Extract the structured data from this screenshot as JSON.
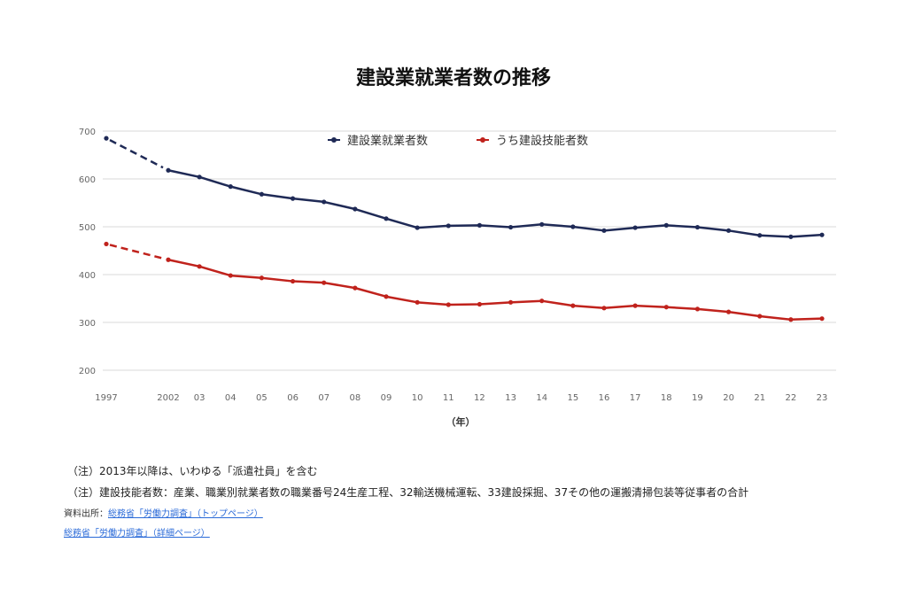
{
  "title": "建設業就業者数の推移",
  "chart_data": {
    "type": "line",
    "title": "建設業就業者数の推移",
    "x": [
      "1997",
      "2002",
      "03",
      "04",
      "05",
      "06",
      "07",
      "08",
      "09",
      "10",
      "11",
      "12",
      "13",
      "14",
      "15",
      "16",
      "17",
      "18",
      "19",
      "20",
      "21",
      "22",
      "23"
    ],
    "xlabel": "（年）",
    "ylabel": "",
    "ylim": [
      200,
      700
    ],
    "yticks": [
      200,
      300,
      400,
      500,
      600,
      700
    ],
    "grid": true,
    "legend_position": "top-center",
    "gap_between_first_points_dashed": true,
    "series": [
      {
        "name": "建設業就業者数",
        "color": "#1f2a56",
        "values": [
          685,
          618,
          604,
          584,
          568,
          559,
          552,
          537,
          517,
          498,
          502,
          503,
          499,
          505,
          500,
          492,
          498,
          503,
          499,
          492,
          482,
          479,
          483
        ]
      },
      {
        "name": "うち建設技能者数",
        "color": "#c0221c",
        "values": [
          464,
          431,
          417,
          398,
          393,
          386,
          383,
          372,
          354,
          342,
          337,
          338,
          342,
          345,
          335,
          330,
          335,
          332,
          328,
          322,
          313,
          306,
          308
        ]
      }
    ]
  },
  "notes": [
    "（注）2013年以降は、いわゆる「派遣社員」を含む",
    "（注）建設技能者数：産業、職業別就業者数の職業番号24生産工程、32輸送機械運転、33建設採掘、37その他の運搬清掃包装等従事者の合計"
  ],
  "source": {
    "label": "資料出所：",
    "link1": "総務省「労働力調査」（トップページ）",
    "link2": "総務省「労働力調査」（詳細ページ）"
  }
}
